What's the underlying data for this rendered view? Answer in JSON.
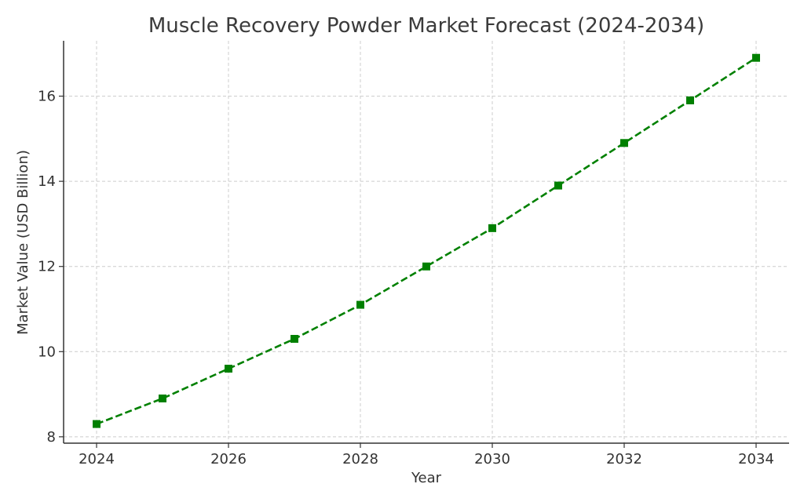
{
  "chart_data": {
    "type": "line",
    "title": "Muscle Recovery Powder Market Forecast (2024-2034)",
    "xlabel": "Year",
    "ylabel": "Market Value (USD Billion)",
    "x": [
      2024,
      2025,
      2026,
      2027,
      2028,
      2029,
      2030,
      2031,
      2032,
      2033,
      2034
    ],
    "series": [
      {
        "values": [
          8.3,
          8.9,
          9.6,
          10.3,
          11.1,
          12.0,
          12.9,
          13.9,
          14.9,
          15.9,
          16.9
        ],
        "color": "#008000",
        "line_style": "dashed",
        "marker": "square"
      }
    ],
    "xlim": [
      2023.5,
      2034.5
    ],
    "ylim": [
      7.85,
      17.3
    ],
    "xticks": [
      "2024",
      "2026",
      "2028",
      "2030",
      "2032",
      "2034"
    ],
    "yticks": [
      "8",
      "10",
      "12",
      "14",
      "16"
    ],
    "grid": true
  }
}
